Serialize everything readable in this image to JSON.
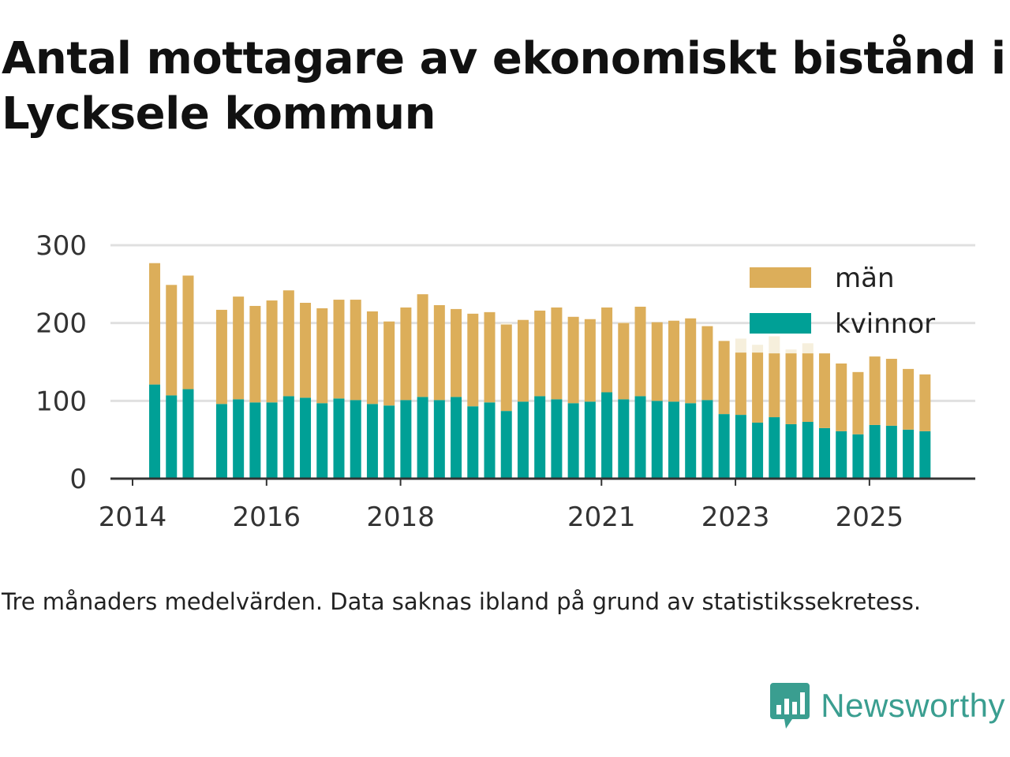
{
  "header": {
    "title": "Antal mottagare av ekonomiskt bistånd i Lycksele kommun"
  },
  "footer": {
    "note": "Tre månaders medelvärden. Data saknas ibland på grund av statistikssekretess.",
    "brand": "Newsworthy"
  },
  "colors": {
    "men": "#dcae5a",
    "women": "#00a096",
    "men_missing": "#f6efdc",
    "grid": "#e0e0e0",
    "axis": "#333333",
    "brand": "#3a9e90"
  },
  "chart_data": {
    "type": "bar",
    "stacked": true,
    "title": "Antal mottagare av ekonomiskt bistånd i Lycksele kommun",
    "xlabel": "",
    "ylabel": "",
    "ylim": [
      0,
      300
    ],
    "yticks": [
      0,
      100,
      200,
      300
    ],
    "xlim": [
      2013.67,
      2026.58
    ],
    "xticks": [
      2014,
      2016,
      2018,
      2021,
      2023,
      2025
    ],
    "grid": true,
    "legend_position": "top-right",
    "legend": [
      {
        "key": "men",
        "label": "män"
      },
      {
        "key": "women",
        "label": "kvinnor"
      }
    ],
    "x": [
      2014.33,
      2014.58,
      2014.83,
      2015.33,
      2015.58,
      2015.83,
      2016.08,
      2016.33,
      2016.58,
      2016.83,
      2017.08,
      2017.33,
      2017.58,
      2017.83,
      2018.08,
      2018.33,
      2018.58,
      2018.83,
      2019.08,
      2019.33,
      2019.58,
      2019.83,
      2020.08,
      2020.33,
      2020.58,
      2020.83,
      2021.08,
      2021.33,
      2021.58,
      2021.83,
      2022.08,
      2022.33,
      2022.58,
      2022.83,
      2023.08,
      2023.33,
      2023.58,
      2023.83,
      2024.08,
      2024.33,
      2024.58,
      2024.83,
      2025.08,
      2025.33,
      2025.58,
      2025.83
    ],
    "series": [
      {
        "name": "kvinnor",
        "key": "women",
        "values": [
          121,
          107,
          115,
          96,
          102,
          98,
          98,
          106,
          104,
          97,
          103,
          101,
          96,
          94,
          101,
          105,
          101,
          105,
          93,
          98,
          87,
          99,
          106,
          102,
          97,
          99,
          111,
          102,
          106,
          100,
          99,
          97,
          101,
          83,
          82,
          72,
          79,
          70,
          73,
          65,
          61,
          57,
          69,
          68,
          63,
          61
        ]
      },
      {
        "name": "män",
        "key": "men",
        "values": [
          156,
          142,
          146,
          121,
          132,
          124,
          131,
          136,
          122,
          122,
          127,
          129,
          119,
          108,
          119,
          132,
          122,
          113,
          119,
          116,
          111,
          105,
          110,
          118,
          111,
          106,
          109,
          98,
          115,
          101,
          104,
          109,
          95,
          94,
          80,
          90,
          82,
          91,
          88,
          96,
          87,
          80,
          88,
          86,
          78,
          73
        ]
      }
    ],
    "men_missing_outline": [
      null,
      null,
      null,
      null,
      null,
      null,
      null,
      null,
      null,
      null,
      null,
      null,
      null,
      null,
      null,
      null,
      null,
      null,
      null,
      null,
      200,
      null,
      null,
      null,
      null,
      null,
      null,
      201,
      null,
      null,
      null,
      null,
      null,
      null,
      180,
      172,
      183,
      166,
      174,
      null,
      null,
      null,
      null,
      null,
      null,
      null
    ]
  }
}
